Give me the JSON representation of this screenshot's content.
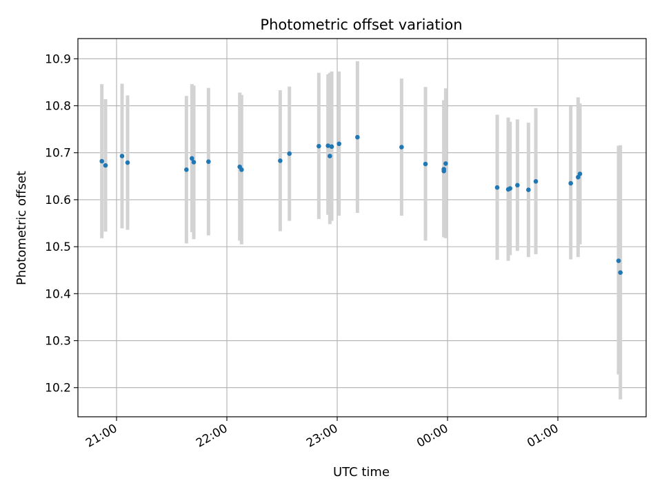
{
  "chart_data": {
    "type": "scatter",
    "title": "Photometric offset variation",
    "xlabel": "UTC time",
    "ylabel": "Photometric offset",
    "xlim": [
      "20:39",
      "01:48"
    ],
    "ylim": [
      10.138,
      10.943
    ],
    "grid": true,
    "error_bar_color": "#d3d3d3",
    "point_color": "#1f77b4",
    "x_ticks": [
      {
        "t": "21:00",
        "label": "21:00"
      },
      {
        "t": "22:00",
        "label": "22:00"
      },
      {
        "t": "23:00",
        "label": "23:00"
      },
      {
        "t": "00:00",
        "label": "00:00"
      },
      {
        "t": "01:00",
        "label": "01:00"
      }
    ],
    "y_ticks": [
      10.2,
      10.3,
      10.4,
      10.5,
      10.6,
      10.7,
      10.8,
      10.9
    ],
    "y_tick_labels": [
      "10.2",
      "10.3",
      "10.4",
      "10.5",
      "10.6",
      "10.7",
      "10.8",
      "10.9"
    ],
    "series": [
      {
        "points": [
          {
            "t": "20:52",
            "y": 10.682,
            "lo": 10.518,
            "hi": 10.846
          },
          {
            "t": "20:54",
            "y": 10.673,
            "lo": 10.532,
            "hi": 10.814
          },
          {
            "t": "21:03",
            "y": 10.693,
            "lo": 10.539,
            "hi": 10.847
          },
          {
            "t": "21:06",
            "y": 10.679,
            "lo": 10.536,
            "hi": 10.822
          },
          {
            "t": "21:38",
            "y": 10.664,
            "lo": 10.507,
            "hi": 10.821
          },
          {
            "t": "21:41",
            "y": 10.688,
            "lo": 10.531,
            "hi": 10.846
          },
          {
            "t": "21:42",
            "y": 10.68,
            "lo": 10.516,
            "hi": 10.843
          },
          {
            "t": "21:50",
            "y": 10.681,
            "lo": 10.524,
            "hi": 10.838
          },
          {
            "t": "22:07",
            "y": 10.67,
            "lo": 10.513,
            "hi": 10.828
          },
          {
            "t": "22:08",
            "y": 10.664,
            "lo": 10.505,
            "hi": 10.823
          },
          {
            "t": "22:29",
            "y": 10.683,
            "lo": 10.533,
            "hi": 10.833
          },
          {
            "t": "22:34",
            "y": 10.698,
            "lo": 10.555,
            "hi": 10.841
          },
          {
            "t": "22:50",
            "y": 10.714,
            "lo": 10.559,
            "hi": 10.87
          },
          {
            "t": "22:55",
            "y": 10.715,
            "lo": 10.568,
            "hi": 10.867
          },
          {
            "t": "22:56",
            "y": 10.693,
            "lo": 10.548,
            "hi": 10.87
          },
          {
            "t": "22:57",
            "y": 10.713,
            "lo": 10.555,
            "hi": 10.873
          },
          {
            "t": "23:01",
            "y": 10.719,
            "lo": 10.566,
            "hi": 10.873
          },
          {
            "t": "23:11",
            "y": 10.733,
            "lo": 10.572,
            "hi": 10.895
          },
          {
            "t": "23:35",
            "y": 10.712,
            "lo": 10.566,
            "hi": 10.858
          },
          {
            "t": "23:48",
            "y": 10.676,
            "lo": 10.513,
            "hi": 10.84
          },
          {
            "t": "23:58",
            "y": 10.661,
            "lo": 10.52,
            "hi": 10.81
          },
          {
            "t": "23:58",
            "y": 10.665,
            "lo": 10.521,
            "hi": 10.812
          },
          {
            "t": "23:59",
            "y": 10.677,
            "lo": 10.518,
            "hi": 10.837
          },
          {
            "t": "00:27",
            "y": 10.626,
            "lo": 10.472,
            "hi": 10.781
          },
          {
            "t": "00:33",
            "y": 10.622,
            "lo": 10.47,
            "hi": 10.775
          },
          {
            "t": "00:34",
            "y": 10.624,
            "lo": 10.482,
            "hi": 10.766
          },
          {
            "t": "00:38",
            "y": 10.631,
            "lo": 10.491,
            "hi": 10.771
          },
          {
            "t": "00:44",
            "y": 10.621,
            "lo": 10.478,
            "hi": 10.764
          },
          {
            "t": "00:48",
            "y": 10.639,
            "lo": 10.484,
            "hi": 10.795
          },
          {
            "t": "01:07",
            "y": 10.635,
            "lo": 10.473,
            "hi": 10.799
          },
          {
            "t": "01:11",
            "y": 10.648,
            "lo": 10.478,
            "hi": 10.818
          },
          {
            "t": "01:12",
            "y": 10.655,
            "lo": 10.505,
            "hi": 10.805
          },
          {
            "t": "01:33",
            "y": 10.47,
            "lo": 10.228,
            "hi": 10.715
          },
          {
            "t": "01:34",
            "y": 10.445,
            "lo": 10.175,
            "hi": 10.716
          }
        ]
      }
    ]
  }
}
